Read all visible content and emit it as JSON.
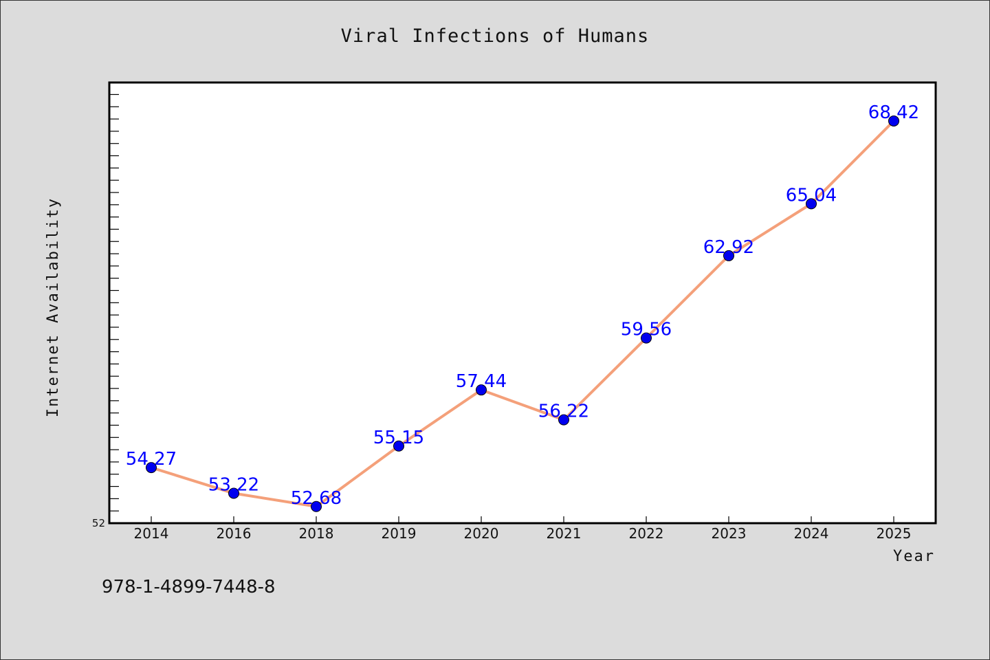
{
  "chart_data": {
    "type": "line",
    "title": "Viral Infections of Humans",
    "xlabel": "Year",
    "ylabel": "Internet Availability",
    "categories": [
      "2014",
      "2016",
      "2018",
      "2019",
      "2020",
      "2021",
      "2022",
      "2023",
      "2024",
      "2025"
    ],
    "series": [
      {
        "values": [
          54.27,
          53.22,
          52.68,
          55.15,
          57.44,
          56.22,
          59.56,
          62.92,
          65.04,
          68.42
        ],
        "data_labels": [
          "54.27",
          "53.22",
          "52.68",
          "55.15",
          "57.44",
          "56.22",
          "59.56",
          "62.92",
          "65.04",
          "68.42"
        ],
        "line_color": "#f4a07a",
        "marker_color": "#0000ee",
        "label_color": "#0000ff"
      }
    ],
    "ylim": [
      52,
      69.99
    ],
    "yticks": [
      52
    ],
    "ytick_labels": [
      "52"
    ],
    "grid": false,
    "legend": "none"
  },
  "footer": {
    "isbn": "978-1-4899-7448-8"
  },
  "colors": {
    "background": "#dcdcdc",
    "plot_background": "#ffffff",
    "axis": "#000000"
  }
}
